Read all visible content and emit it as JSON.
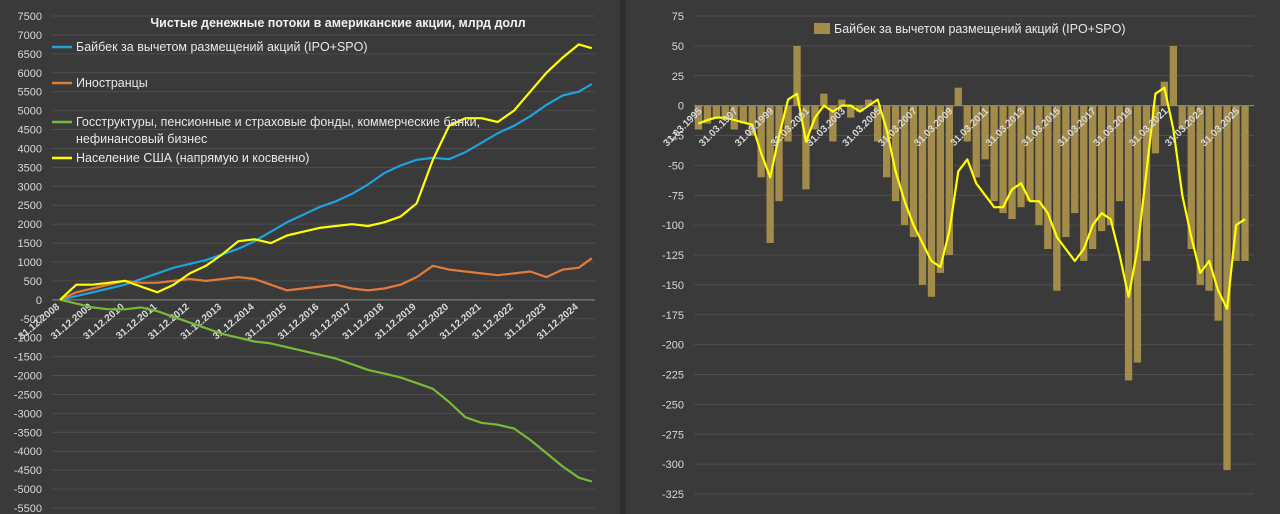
{
  "chart_data": [
    {
      "type": "line",
      "title": "Чистые денежные потоки в американские акции, млрд долл",
      "ylim": [
        -5500,
        7500
      ],
      "yticks": [
        -5500,
        -5000,
        -4500,
        -4000,
        -3500,
        -3000,
        -2500,
        -2000,
        -1500,
        -1000,
        -500,
        0,
        500,
        1000,
        1500,
        2000,
        2500,
        3000,
        3500,
        4000,
        4500,
        5000,
        5500,
        6000,
        6500,
        7000,
        7500
      ],
      "xticklabels": [
        "31.12.2008",
        "31.12.2009",
        "31.12.2010",
        "31.12.2011",
        "31.12.2012",
        "31.12.2013",
        "31.12.2014",
        "31.12.2015",
        "31.12.2016",
        "31.12.2017",
        "31.12.2018",
        "31.12.2019",
        "31.12.2020",
        "31.12.2021",
        "31.12.2022",
        "31.12.2023",
        "31.12.2024"
      ],
      "xrange": [
        2008.75,
        2025.5
      ],
      "legend_position": "top-left",
      "series": [
        {
          "name": "Байбек за вычетом размещений акций (IPO+SPO)",
          "color": "#1fa2dd",
          "x": [
            2009.0,
            2009.5,
            2010.0,
            2010.5,
            2011.0,
            2011.5,
            2012.0,
            2012.5,
            2013.0,
            2013.5,
            2014.0,
            2014.5,
            2015.0,
            2015.5,
            2016.0,
            2016.5,
            2017.0,
            2017.5,
            2018.0,
            2018.5,
            2019.0,
            2019.5,
            2020.0,
            2020.5,
            2021.0,
            2021.5,
            2022.0,
            2022.5,
            2023.0,
            2023.5,
            2024.0,
            2024.5,
            2025.0,
            2025.4
          ],
          "values": [
            0,
            100,
            200,
            300,
            400,
            550,
            700,
            850,
            950,
            1050,
            1200,
            1350,
            1550,
            1800,
            2050,
            2250,
            2450,
            2600,
            2800,
            3050,
            3350,
            3550,
            3700,
            3750,
            3720,
            3900,
            4150,
            4400,
            4600,
            4850,
            5150,
            5400,
            5500,
            5700
          ]
        },
        {
          "name": "Иностранцы",
          "color": "#e07b39",
          "x": [
            2009.0,
            2009.5,
            2010.0,
            2010.5,
            2011.0,
            2011.5,
            2012.0,
            2012.5,
            2013.0,
            2013.5,
            2014.0,
            2014.5,
            2015.0,
            2015.5,
            2016.0,
            2016.5,
            2017.0,
            2017.5,
            2018.0,
            2018.5,
            2019.0,
            2019.5,
            2020.0,
            2020.5,
            2021.0,
            2021.5,
            2022.0,
            2022.5,
            2023.0,
            2023.5,
            2024.0,
            2024.5,
            2025.0,
            2025.4
          ],
          "values": [
            0,
            200,
            300,
            400,
            500,
            450,
            450,
            500,
            550,
            500,
            550,
            600,
            550,
            400,
            250,
            300,
            350,
            400,
            300,
            250,
            300,
            400,
            600,
            900,
            800,
            750,
            700,
            650,
            700,
            750,
            600,
            800,
            850,
            1100
          ]
        },
        {
          "name": "Госструктуры, пенсионные и страховые фонды, коммерческие банки, нефинансовый бизнес",
          "color": "#79b93a",
          "x": [
            2009.0,
            2009.5,
            2010.0,
            2010.5,
            2011.0,
            2011.5,
            2012.0,
            2012.5,
            2013.0,
            2013.5,
            2014.0,
            2014.5,
            2015.0,
            2015.5,
            2016.0,
            2016.5,
            2017.0,
            2017.5,
            2018.0,
            2018.5,
            2019.0,
            2019.5,
            2020.0,
            2020.5,
            2021.0,
            2021.5,
            2022.0,
            2022.5,
            2023.0,
            2023.5,
            2024.0,
            2024.5,
            2025.0,
            2025.4
          ],
          "values": [
            0,
            -100,
            -200,
            -250,
            -250,
            -200,
            -300,
            -450,
            -600,
            -750,
            -900,
            -1000,
            -1100,
            -1150,
            -1250,
            -1350,
            -1450,
            -1550,
            -1700,
            -1850,
            -1950,
            -2050,
            -2200,
            -2350,
            -2700,
            -3100,
            -3250,
            -3300,
            -3400,
            -3700,
            -4050,
            -4400,
            -4700,
            -4800
          ]
        },
        {
          "name": "Население США (напрямую и косвенно)",
          "color": "#ffff00",
          "x": [
            2009.0,
            2009.5,
            2010.0,
            2010.5,
            2011.0,
            2011.5,
            2012.0,
            2012.5,
            2013.0,
            2013.5,
            2014.0,
            2014.5,
            2015.0,
            2015.5,
            2016.0,
            2016.5,
            2017.0,
            2017.5,
            2018.0,
            2018.5,
            2019.0,
            2019.5,
            2020.0,
            2020.5,
            2021.0,
            2021.5,
            2022.0,
            2022.5,
            2023.0,
            2023.5,
            2024.0,
            2024.5,
            2025.0,
            2025.4
          ],
          "values": [
            0,
            400,
            400,
            450,
            500,
            350,
            200,
            400,
            700,
            900,
            1200,
            1550,
            1600,
            1500,
            1700,
            1800,
            1900,
            1950,
            2000,
            1950,
            2050,
            2200,
            2550,
            3700,
            4600,
            4800,
            4800,
            4700,
            5000,
            5500,
            6000,
            6400,
            6750,
            6650
          ]
        }
      ]
    },
    {
      "type": "bar",
      "ylim": [
        -325,
        75
      ],
      "yticks": [
        -325,
        -300,
        -275,
        -250,
        -225,
        -200,
        -175,
        -150,
        -125,
        -100,
        -75,
        -50,
        -25,
        0,
        25,
        50,
        75
      ],
      "xticklabels": [
        "31.03.1995",
        "31.03.1997",
        "31.03.1999",
        "31.03.2001",
        "31.03.2003",
        "31.03.2005",
        "31.03.2007",
        "31.03.2009",
        "31.03.2011",
        "31.03.2013",
        "31.03.2015",
        "31.03.2017",
        "31.03.2019",
        "31.03.2021",
        "31.03.2023",
        "31.03.2025"
      ],
      "xrange": [
        1994.75,
        2026.0
      ],
      "legend_position": "top",
      "series": [
        {
          "name": "Байбек за вычетом размещений акций (IPO+SPO)",
          "color": "#a38c4a",
          "x": [
            1995.0,
            1995.5,
            1996.0,
            1996.5,
            1997.0,
            1997.5,
            1998.0,
            1998.5,
            1999.0,
            1999.5,
            2000.0,
            2000.5,
            2001.0,
            2001.5,
            2002.0,
            2002.5,
            2003.0,
            2003.5,
            2004.0,
            2004.5,
            2005.0,
            2005.5,
            2006.0,
            2006.5,
            2007.0,
            2007.5,
            2008.0,
            2008.5,
            2009.0,
            2009.5,
            2010.0,
            2010.5,
            2011.0,
            2011.5,
            2012.0,
            2012.5,
            2013.0,
            2013.5,
            2014.0,
            2014.5,
            2015.0,
            2015.5,
            2016.0,
            2016.5,
            2017.0,
            2017.5,
            2018.0,
            2018.5,
            2019.0,
            2019.5,
            2020.0,
            2020.5,
            2021.0,
            2021.5,
            2022.0,
            2022.5,
            2023.0,
            2023.5,
            2024.0,
            2024.5,
            2025.0,
            2025.5
          ],
          "values": [
            -20,
            -15,
            -10,
            -12,
            -20,
            -15,
            -25,
            -60,
            -115,
            -80,
            -30,
            50,
            -70,
            -20,
            10,
            -30,
            5,
            -10,
            -5,
            5,
            -30,
            -60,
            -80,
            -100,
            -110,
            -150,
            -160,
            -140,
            -125,
            15,
            -30,
            -60,
            -45,
            -80,
            -90,
            -95,
            -85,
            -80,
            -100,
            -120,
            -155,
            -110,
            -90,
            -130,
            -120,
            -105,
            -100,
            -80,
            -230,
            -215,
            -130,
            -40,
            20,
            50,
            -20,
            -120,
            -150,
            -155,
            -180,
            -305,
            -130,
            -130
          ]
        },
        {
          "name": "",
          "color": "#ffff00",
          "x": [
            1995.0,
            1995.5,
            1996.0,
            1996.5,
            1997.0,
            1997.5,
            1998.0,
            1998.5,
            1999.0,
            1999.5,
            2000.0,
            2000.5,
            2001.0,
            2001.5,
            2002.0,
            2002.5,
            2003.0,
            2003.5,
            2004.0,
            2004.5,
            2005.0,
            2005.5,
            2006.0,
            2006.5,
            2007.0,
            2007.5,
            2008.0,
            2008.5,
            2009.0,
            2009.5,
            2010.0,
            2010.5,
            2011.0,
            2011.5,
            2012.0,
            2012.5,
            2013.0,
            2013.5,
            2014.0,
            2014.5,
            2015.0,
            2015.5,
            2016.0,
            2016.5,
            2017.0,
            2017.5,
            2018.0,
            2018.5,
            2019.0,
            2019.5,
            2020.0,
            2020.5,
            2021.0,
            2021.5,
            2022.0,
            2022.5,
            2023.0,
            2023.5,
            2024.0,
            2024.5,
            2025.0,
            2025.5
          ],
          "values": [
            -15,
            -12,
            -10,
            -10,
            -12,
            -14,
            -16,
            -40,
            -60,
            -25,
            5,
            10,
            -30,
            -10,
            0,
            -5,
            0,
            0,
            -5,
            0,
            5,
            -20,
            -55,
            -80,
            -100,
            -115,
            -130,
            -135,
            -105,
            -55,
            -45,
            -65,
            -75,
            -85,
            -85,
            -70,
            -65,
            -80,
            -80,
            -90,
            -110,
            -120,
            -130,
            -120,
            -100,
            -90,
            -95,
            -125,
            -160,
            -120,
            -55,
            10,
            15,
            -20,
            -75,
            -110,
            -140,
            -130,
            -155,
            -170,
            -100,
            -95
          ]
        }
      ]
    }
  ]
}
